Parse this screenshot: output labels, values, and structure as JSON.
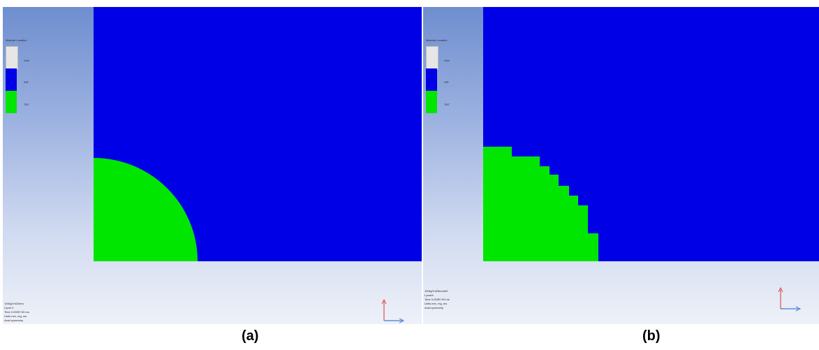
{
  "panels": [
    {
      "id": "a",
      "legend": {
        "title": "Material Location",
        "items": [
          {
            "label": "Void",
            "color": "#e6e6e6"
          },
          {
            "label": "AIR",
            "color": "#0000e6"
          },
          {
            "label": "TNT",
            "color": "#00e600"
          }
        ]
      },
      "info": [
        "100kgTnt15mm",
        "Cycle 0",
        "Time 0.000E+00 ms",
        "Units mm, mg, ms",
        "Axial symmetry"
      ],
      "caption": "(a)"
    },
    {
      "id": "b",
      "legend": {
        "title": "Material Location",
        "items": [
          {
            "label": "Void",
            "color": "#e6e6e6"
          },
          {
            "label": "AIR",
            "color": "#0000e6"
          },
          {
            "label": "TNT",
            "color": "#00e600"
          }
        ]
      },
      "info": [
        "100kgTnt25mmAH",
        "t-probe",
        "Time 0.000E+00 ms",
        "Units mm, mg, ms",
        "Axial symmetry"
      ],
      "caption": "(b)"
    }
  ],
  "colors": {
    "air": "#0000e6",
    "tnt": "#00e600",
    "void": "#e6e6e6",
    "axis_y": "#e05050",
    "axis_x": "#4a78d0"
  }
}
